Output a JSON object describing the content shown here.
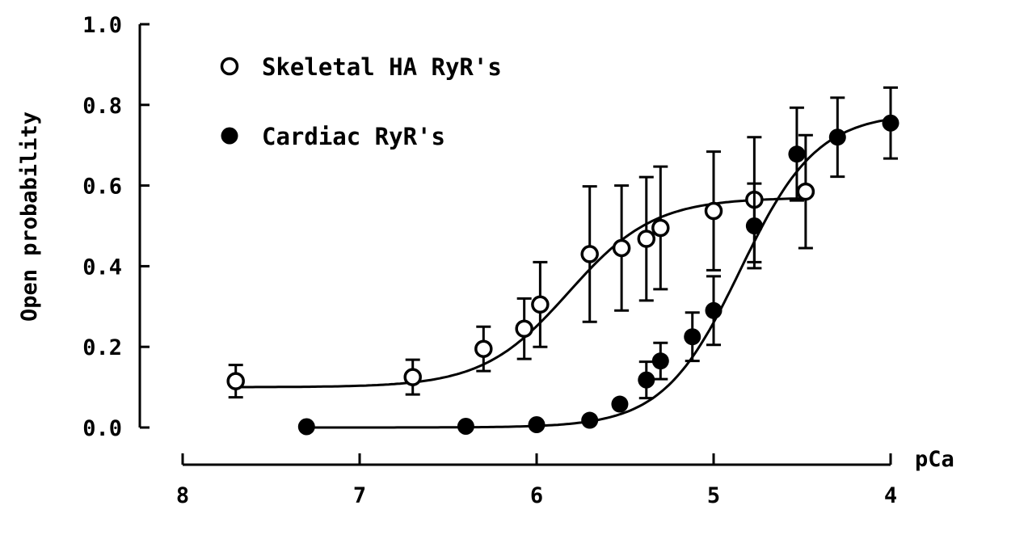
{
  "chart_data": {
    "type": "scatter",
    "xlabel": "pCa",
    "ylabel": "Open probability",
    "xlim": [
      8,
      4
    ],
    "ylim": [
      0,
      1.0
    ],
    "x_reversed": true,
    "x_ticks": [
      8,
      7,
      6,
      5,
      4
    ],
    "x_tick_labels": [
      "8",
      "7",
      "6",
      "5",
      "4"
    ],
    "y_ticks": [
      0,
      0.2,
      0.4,
      0.6,
      0.8,
      1.0
    ],
    "y_tick_labels": [
      "0.0",
      "0.2",
      "0.4",
      "0.6",
      "0.8",
      "1.0"
    ],
    "grid": false,
    "legend_position": "top-left",
    "series": [
      {
        "name": "Skeletal HA RyR's",
        "marker": "open-circle",
        "color": "#000000",
        "x": [
          7.7,
          6.7,
          6.3,
          6.07,
          5.98,
          5.7,
          5.52,
          5.38,
          5.3,
          5.0,
          4.77,
          4.48
        ],
        "y": [
          0.115,
          0.125,
          0.195,
          0.245,
          0.305,
          0.43,
          0.445,
          0.468,
          0.495,
          0.537,
          0.565,
          0.585
        ],
        "err": [
          0.04,
          0.043,
          0.055,
          0.075,
          0.105,
          0.168,
          0.155,
          0.153,
          0.152,
          0.147,
          0.155,
          0.14
        ],
        "fit_curve": {
          "x_start": 7.7,
          "x_end": 4.5,
          "baseline": 0.1,
          "max": 0.57,
          "pCa50": 5.82,
          "hill": 1.8
        }
      },
      {
        "name": "Cardiac RyR's",
        "marker": "filled-circle",
        "color": "#000000",
        "x": [
          7.3,
          6.4,
          6.0,
          5.7,
          5.53,
          5.38,
          5.3,
          5.12,
          5.0,
          4.77,
          4.53,
          4.3,
          4.0
        ],
        "y": [
          0.002,
          0.003,
          0.007,
          0.018,
          0.058,
          0.118,
          0.165,
          0.225,
          0.29,
          0.5,
          0.678,
          0.72,
          0.755
        ],
        "err": [
          0,
          0,
          0,
          0,
          0,
          0.045,
          0.045,
          0.06,
          0.085,
          0.105,
          0.115,
          0.098,
          0.088
        ],
        "fit_curve": {
          "x_start": 7.3,
          "x_end": 4.0,
          "baseline": 0.0,
          "max": 0.78,
          "pCa50": 4.85,
          "hill": 2.0
        }
      }
    ]
  }
}
